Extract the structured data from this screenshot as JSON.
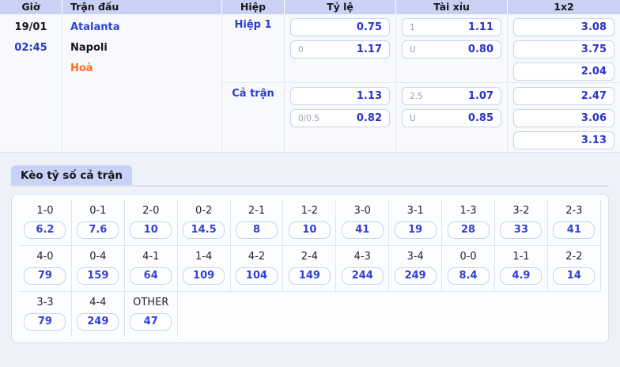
{
  "colors": {
    "header_bg": "#c9d2f4",
    "accent_blue": "#2a33c7",
    "team_blue": "#2c44d8",
    "draw_orange": "#ff6f1e",
    "pill_blue": "#3340d6"
  },
  "table": {
    "headers": [
      "Giờ",
      "Trận đấu",
      "Hiệp",
      "Tỷ lệ",
      "Tài xỉu",
      "1x2"
    ]
  },
  "match": {
    "date": "19/01",
    "time": "02:45",
    "home": "Atalanta",
    "away": "Napoli",
    "draw_label": "Hoà"
  },
  "periods": [
    {
      "label": "Hiệp 1",
      "handicap": [
        {
          "line": "",
          "odds": "0.75"
        },
        {
          "line": "0",
          "odds": "1.17"
        }
      ],
      "total": [
        {
          "line": "1",
          "odds": "1.11"
        },
        {
          "line": "U",
          "odds": "0.80"
        }
      ],
      "one_x_two": [
        "3.08",
        "3.75",
        "2.04"
      ]
    },
    {
      "label": "Cả trận",
      "handicap": [
        {
          "line": "",
          "odds": "1.13"
        },
        {
          "line": "0/0.5",
          "odds": "0.82"
        }
      ],
      "total": [
        {
          "line": "2.5",
          "odds": "1.07"
        },
        {
          "line": "U",
          "odds": "0.85"
        }
      ],
      "one_x_two": [
        "2.47",
        "3.06",
        "3.13"
      ]
    }
  ],
  "correct_score": {
    "title": "Kèo tỷ số cả trận",
    "rows": [
      [
        {
          "score": "1-0",
          "odds": "6.2"
        },
        {
          "score": "0-1",
          "odds": "7.6"
        },
        {
          "score": "2-0",
          "odds": "10"
        },
        {
          "score": "0-2",
          "odds": "14.5"
        },
        {
          "score": "2-1",
          "odds": "8"
        },
        {
          "score": "1-2",
          "odds": "10"
        },
        {
          "score": "3-0",
          "odds": "41"
        },
        {
          "score": "3-1",
          "odds": "19"
        },
        {
          "score": "1-3",
          "odds": "28"
        },
        {
          "score": "3-2",
          "odds": "33"
        },
        {
          "score": "2-3",
          "odds": "41"
        }
      ],
      [
        {
          "score": "4-0",
          "odds": "79"
        },
        {
          "score": "0-4",
          "odds": "159"
        },
        {
          "score": "4-1",
          "odds": "64"
        },
        {
          "score": "1-4",
          "odds": "109"
        },
        {
          "score": "4-2",
          "odds": "104"
        },
        {
          "score": "2-4",
          "odds": "149"
        },
        {
          "score": "4-3",
          "odds": "244"
        },
        {
          "score": "3-4",
          "odds": "249"
        },
        {
          "score": "0-0",
          "odds": "8.4"
        },
        {
          "score": "1-1",
          "odds": "4.9"
        },
        {
          "score": "2-2",
          "odds": "14"
        }
      ],
      [
        {
          "score": "3-3",
          "odds": "79"
        },
        {
          "score": "4-4",
          "odds": "249"
        },
        {
          "score": "OTHER",
          "odds": "47"
        }
      ]
    ]
  }
}
